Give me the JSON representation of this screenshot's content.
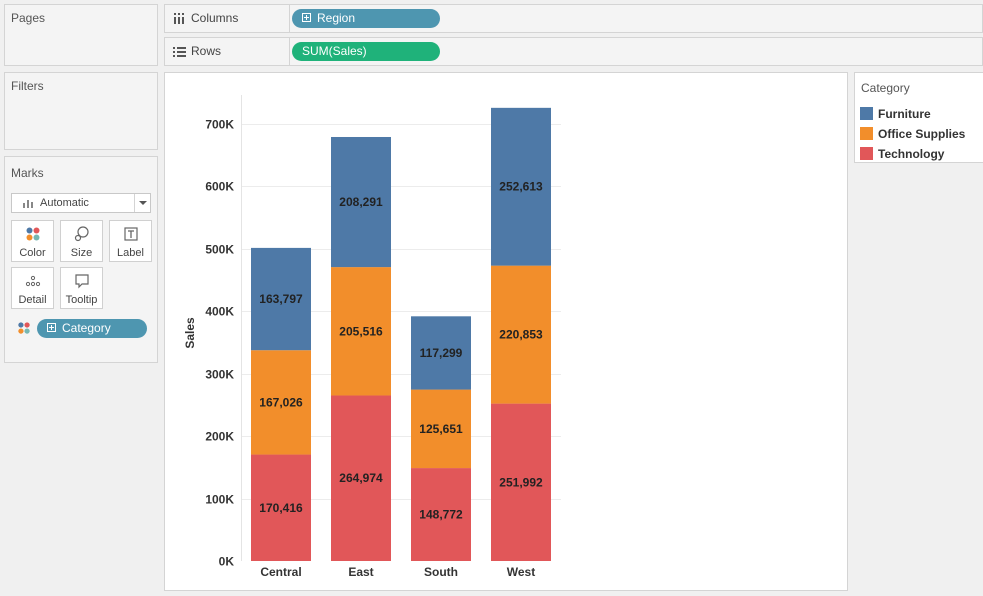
{
  "pages": {
    "title": "Pages"
  },
  "filters": {
    "title": "Filters"
  },
  "columns_shelf": {
    "label": "Columns",
    "pill": "Region"
  },
  "rows_shelf": {
    "label": "Rows",
    "pill": "SUM(Sales)"
  },
  "marks": {
    "title": "Marks",
    "mark_type": "Automatic",
    "buttons": [
      {
        "label": "Color",
        "icon": "color-dots-icon"
      },
      {
        "label": "Size",
        "icon": "size-icon"
      },
      {
        "label": "Label",
        "icon": "label-icon"
      },
      {
        "label": "Detail",
        "icon": "detail-icon"
      },
      {
        "label": "Tooltip",
        "icon": "tooltip-icon"
      }
    ],
    "color_pill": "Category"
  },
  "legend": {
    "title": "Category",
    "items": [
      {
        "label": "Furniture",
        "color": "#4e79a7"
      },
      {
        "label": "Office Supplies",
        "color": "#f28e2b"
      },
      {
        "label": "Technology",
        "color": "#e15759"
      }
    ]
  },
  "chart_data": {
    "type": "bar",
    "stacked": true,
    "categories": [
      "Central",
      "East",
      "South",
      "West"
    ],
    "series": [
      {
        "name": "Technology",
        "color": "#e15759",
        "values": [
          170416,
          264974,
          148772,
          251992
        ],
        "labels": [
          "170,416",
          "264,974",
          "148,772",
          "251,992"
        ]
      },
      {
        "name": "Office Supplies",
        "color": "#f28e2b",
        "values": [
          167026,
          205516,
          125651,
          220853
        ],
        "labels": [
          "167,026",
          "205,516",
          "125,651",
          "220,853"
        ]
      },
      {
        "name": "Furniture",
        "color": "#4e79a7",
        "values": [
          163797,
          208291,
          117299,
          252613
        ],
        "labels": [
          "163,797",
          "208,291",
          "117,299",
          "252,613"
        ]
      }
    ],
    "ylabel": "Sales",
    "xlabel": "",
    "ylim": [
      0,
      730000
    ],
    "yticks": [
      0,
      100000,
      200000,
      300000,
      400000,
      500000,
      600000,
      700000
    ],
    "ytick_labels": [
      "0K",
      "100K",
      "200K",
      "300K",
      "400K",
      "500K",
      "600K",
      "700K"
    ],
    "grid": true
  }
}
